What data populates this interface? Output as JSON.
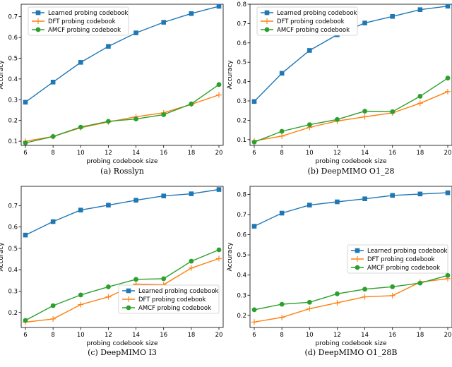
{
  "colors": {
    "learned": "#1f77b4",
    "dft": "#ff7f0e",
    "amcf": "#2ca02c"
  },
  "chart_data": [
    {
      "type": "line",
      "caption": "(a) Rosslyn",
      "xlabel": "probing codebook size",
      "ylabel": "Accuracy",
      "x": [
        6,
        8,
        10,
        12,
        14,
        16,
        18,
        20
      ],
      "xlim": [
        6,
        20
      ],
      "ylim": [
        0.08,
        0.76
      ],
      "yticks": [
        0.1,
        0.2,
        0.3,
        0.4,
        0.5,
        0.6,
        0.7
      ],
      "legend_position": "top-left",
      "series": [
        {
          "name": "Learned probing codebook",
          "marker": "square",
          "color_key": "learned",
          "values": [
            0.288,
            0.385,
            0.48,
            0.557,
            0.622,
            0.673,
            0.715,
            0.75
          ]
        },
        {
          "name": "DFT probing codebook",
          "marker": "plus",
          "color_key": "dft",
          "values": [
            0.1,
            0.123,
            0.165,
            0.193,
            0.218,
            0.237,
            0.278,
            0.323
          ]
        },
        {
          "name": "AMCF probing codebook",
          "marker": "circle",
          "color_key": "amcf",
          "values": [
            0.092,
            0.123,
            0.168,
            0.196,
            0.207,
            0.228,
            0.28,
            0.373
          ]
        }
      ]
    },
    {
      "type": "line",
      "caption": "(b) DeepMIMO O1_28",
      "xlabel": "probing codebook size",
      "ylabel": "Accuracy",
      "x": [
        6,
        8,
        10,
        12,
        14,
        16,
        18,
        20
      ],
      "xlim": [
        6,
        20
      ],
      "ylim": [
        0.07,
        0.8
      ],
      "yticks": [
        0.1,
        0.2,
        0.3,
        0.4,
        0.5,
        0.6,
        0.7,
        0.8
      ],
      "legend_position": "top-left",
      "series": [
        {
          "name": "Learned probing codebook",
          "marker": "square",
          "color_key": "learned",
          "values": [
            0.297,
            0.443,
            0.561,
            0.642,
            0.703,
            0.737,
            0.772,
            0.79
          ]
        },
        {
          "name": "DFT probing codebook",
          "marker": "plus",
          "color_key": "dft",
          "values": [
            0.093,
            0.118,
            0.163,
            0.196,
            0.218,
            0.238,
            0.288,
            0.348
          ]
        },
        {
          "name": "AMCF probing codebook",
          "marker": "circle",
          "color_key": "amcf",
          "values": [
            0.087,
            0.143,
            0.177,
            0.204,
            0.247,
            0.244,
            0.324,
            0.418
          ]
        }
      ]
    },
    {
      "type": "line",
      "caption": "(c) DeepMIMO I3",
      "xlabel": "probing codebook size",
      "ylabel": "Accuracy",
      "x": [
        6,
        8,
        10,
        12,
        14,
        16,
        18,
        20
      ],
      "xlim": [
        6,
        20
      ],
      "ylim": [
        0.13,
        0.79
      ],
      "yticks": [
        0.2,
        0.3,
        0.4,
        0.5,
        0.6,
        0.7
      ],
      "legend_position": "bottom-right",
      "series": [
        {
          "name": "Learned probing codebook",
          "marker": "square",
          "color_key": "learned",
          "values": [
            0.562,
            0.625,
            0.679,
            0.702,
            0.725,
            0.745,
            0.755,
            0.775
          ]
        },
        {
          "name": "DFT probing codebook",
          "marker": "plus",
          "color_key": "dft",
          "values": [
            0.155,
            0.17,
            0.237,
            0.273,
            0.333,
            0.33,
            0.408,
            0.452
          ]
        },
        {
          "name": "AMCF probing codebook",
          "marker": "circle",
          "color_key": "amcf",
          "values": [
            0.163,
            0.232,
            0.282,
            0.32,
            0.355,
            0.358,
            0.44,
            0.493
          ]
        }
      ]
    },
    {
      "type": "line",
      "caption": "(d) DeepMIMO O1_28B",
      "xlabel": "probing codebook size",
      "ylabel": "Accuracy",
      "x": [
        6,
        8,
        10,
        12,
        14,
        16,
        18,
        20
      ],
      "xlim": [
        6,
        20
      ],
      "ylim": [
        0.14,
        0.84
      ],
      "yticks": [
        0.2,
        0.3,
        0.4,
        0.5,
        0.6,
        0.7,
        0.8
      ],
      "legend_position": "center-right",
      "series": [
        {
          "name": "Learned probing codebook",
          "marker": "square",
          "color_key": "learned",
          "values": [
            0.642,
            0.707,
            0.747,
            0.763,
            0.778,
            0.795,
            0.802,
            0.808
          ]
        },
        {
          "name": "DFT probing codebook",
          "marker": "plus",
          "color_key": "dft",
          "values": [
            0.167,
            0.19,
            0.233,
            0.262,
            0.292,
            0.298,
            0.365,
            0.382
          ]
        },
        {
          "name": "AMCF probing codebook",
          "marker": "circle",
          "color_key": "amcf",
          "values": [
            0.228,
            0.255,
            0.265,
            0.307,
            0.33,
            0.342,
            0.36,
            0.398
          ]
        }
      ]
    }
  ]
}
